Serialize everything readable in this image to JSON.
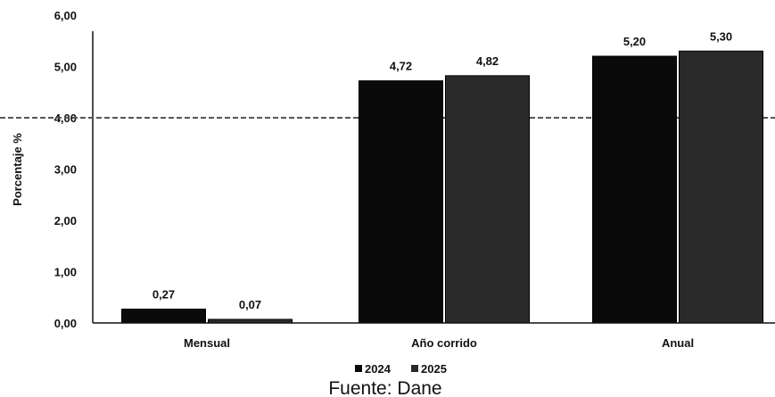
{
  "chart_data": {
    "type": "bar",
    "categories": [
      "Mensual",
      "Año corrido",
      "Anual"
    ],
    "series": [
      {
        "name": "2024",
        "values": [
          0.27,
          4.72,
          5.2
        ],
        "labels": [
          "0,27",
          "4,72",
          "5,20"
        ],
        "color": "#0a0a0a"
      },
      {
        "name": "2025",
        "values": [
          0.07,
          4.82,
          5.3
        ],
        "labels": [
          "0,07",
          "4,82",
          "5,30"
        ],
        "color": "#2a2a2a"
      }
    ],
    "ylabel": "Porcentaje %",
    "xlabel": "",
    "ylim": [
      0,
      6
    ],
    "yticks": [
      0,
      1,
      2,
      3,
      4,
      5,
      6
    ],
    "ytick_labels": [
      "0,00",
      "1,00",
      "2,00",
      "3,00",
      "4,00",
      "5,00",
      "6,00"
    ],
    "grid": false,
    "legend_position": "bottom",
    "reference_line": {
      "value": 4.0,
      "style": "dashed"
    }
  },
  "source_note": "Fuente: Dane"
}
